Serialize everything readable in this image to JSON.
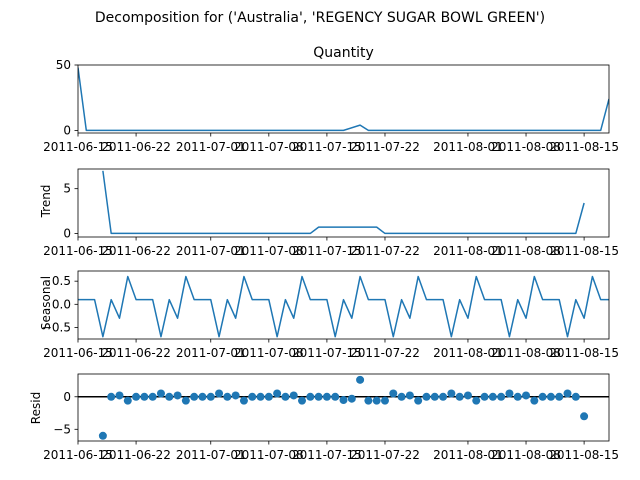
{
  "figure": {
    "suptitle": "Decomposition for ('Australia', 'REGENCY SUGAR BOWL GREEN')"
  },
  "chart_data": [
    {
      "type": "line",
      "title": "Quantity",
      "ylabel": "",
      "x_start": "2011-06-15",
      "x_end": "2011-08-18",
      "x_ticks": [
        "2011-06-15",
        "2011-06-22",
        "2011-07-01",
        "2011-07-08",
        "2011-07-15",
        "2011-07-22",
        "2011-08-01",
        "2011-08-08",
        "2011-08-15"
      ],
      "ylim": [
        -2,
        50
      ],
      "y_ticks": [
        "0",
        "50"
      ],
      "color": "#1f77b4",
      "grid": false,
      "points": [
        {
          "x": "2011-06-15",
          "y": 48
        },
        {
          "x": "2011-06-16",
          "y": 0
        },
        {
          "x": "2011-07-17",
          "y": 0
        },
        {
          "x": "2011-07-19",
          "y": 4
        },
        {
          "x": "2011-07-20",
          "y": 0
        },
        {
          "x": "2011-08-17",
          "y": 0
        },
        {
          "x": "2011-08-18",
          "y": 24
        }
      ]
    },
    {
      "type": "line",
      "title": "",
      "ylabel": "Trend",
      "x_start": "2011-06-15",
      "x_end": "2011-08-18",
      "x_ticks": [
        "2011-06-15",
        "2011-06-22",
        "2011-07-01",
        "2011-07-08",
        "2011-07-15",
        "2011-07-22",
        "2011-08-01",
        "2011-08-08",
        "2011-08-15"
      ],
      "ylim": [
        -0.4,
        7.2
      ],
      "y_ticks": [
        "0",
        "5"
      ],
      "color": "#1f77b4",
      "grid": false,
      "points": [
        {
          "x": "2011-06-18",
          "y": 7
        },
        {
          "x": "2011-06-19",
          "y": 0
        },
        {
          "x": "2011-07-13",
          "y": 0
        },
        {
          "x": "2011-07-14",
          "y": 0.7
        },
        {
          "x": "2011-07-21",
          "y": 0.7
        },
        {
          "x": "2011-07-22",
          "y": 0
        },
        {
          "x": "2011-08-14",
          "y": 0
        },
        {
          "x": "2011-08-15",
          "y": 3.4
        }
      ]
    },
    {
      "type": "line",
      "title": "",
      "ylabel": "Seasonal",
      "x_start": "2011-06-15",
      "x_end": "2011-08-18",
      "x_ticks": [
        "2011-06-15",
        "2011-06-22",
        "2011-07-01",
        "2011-07-08",
        "2011-07-15",
        "2011-07-22",
        "2011-08-01",
        "2011-08-08",
        "2011-08-15"
      ],
      "ylim": [
        -0.75,
        0.72
      ],
      "y_ticks": [
        "0.5",
        "0.0",
        "-0.5"
      ],
      "y_tick_values": [
        0.5,
        0,
        -0.5
      ],
      "color": "#1f77b4",
      "grid": false,
      "period": 7,
      "pattern": [
        0.1,
        0.1,
        0.1,
        -0.7,
        0.1,
        -0.3,
        0.6
      ],
      "start_x": "2011-06-15",
      "end_x": "2011-08-18"
    },
    {
      "type": "scatter",
      "title": "",
      "ylabel": "Resid",
      "x_start": "2011-06-15",
      "x_end": "2011-08-18",
      "x_ticks": [
        "2011-06-15",
        "2011-06-22",
        "2011-07-01",
        "2011-07-08",
        "2011-07-15",
        "2011-07-22",
        "2011-08-01",
        "2011-08-08",
        "2011-08-15"
      ],
      "ylim": [
        -6.8,
        3.5
      ],
      "y_ticks": [
        "0",
        "-5"
      ],
      "y_tick_values": [
        0,
        -5
      ],
      "color": "#1f77b4",
      "baseline": 0,
      "grid": false,
      "points": [
        {
          "x": "2011-06-18",
          "y": -6.0
        },
        {
          "x": "2011-06-19",
          "y": 0.0
        },
        {
          "x": "2011-06-20",
          "y": 0.2
        },
        {
          "x": "2011-06-21",
          "y": -0.6
        },
        {
          "x": "2011-06-22",
          "y": 0.0
        },
        {
          "x": "2011-06-23",
          "y": 0.0
        },
        {
          "x": "2011-06-24",
          "y": 0.0
        },
        {
          "x": "2011-06-25",
          "y": 0.5
        },
        {
          "x": "2011-06-26",
          "y": 0.0
        },
        {
          "x": "2011-06-27",
          "y": 0.2
        },
        {
          "x": "2011-06-28",
          "y": -0.6
        },
        {
          "x": "2011-06-29",
          "y": 0.0
        },
        {
          "x": "2011-06-30",
          "y": 0.0
        },
        {
          "x": "2011-07-01",
          "y": 0.0
        },
        {
          "x": "2011-07-02",
          "y": 0.5
        },
        {
          "x": "2011-07-03",
          "y": 0.0
        },
        {
          "x": "2011-07-04",
          "y": 0.2
        },
        {
          "x": "2011-07-05",
          "y": -0.6
        },
        {
          "x": "2011-07-06",
          "y": 0.0
        },
        {
          "x": "2011-07-07",
          "y": 0.0
        },
        {
          "x": "2011-07-08",
          "y": 0.0
        },
        {
          "x": "2011-07-09",
          "y": 0.5
        },
        {
          "x": "2011-07-10",
          "y": 0.0
        },
        {
          "x": "2011-07-11",
          "y": 0.2
        },
        {
          "x": "2011-07-12",
          "y": -0.6
        },
        {
          "x": "2011-07-13",
          "y": 0.0
        },
        {
          "x": "2011-07-14",
          "y": 0.0
        },
        {
          "x": "2011-07-15",
          "y": 0.0
        },
        {
          "x": "2011-07-16",
          "y": 0.0
        },
        {
          "x": "2011-07-17",
          "y": -0.5
        },
        {
          "x": "2011-07-18",
          "y": -0.3
        },
        {
          "x": "2011-07-19",
          "y": 2.6
        },
        {
          "x": "2011-07-20",
          "y": -0.6
        },
        {
          "x": "2011-07-21",
          "y": -0.6
        },
        {
          "x": "2011-07-22",
          "y": -0.6
        },
        {
          "x": "2011-07-23",
          "y": 0.5
        },
        {
          "x": "2011-07-24",
          "y": 0.0
        },
        {
          "x": "2011-07-25",
          "y": 0.2
        },
        {
          "x": "2011-07-26",
          "y": -0.6
        },
        {
          "x": "2011-07-27",
          "y": 0.0
        },
        {
          "x": "2011-07-28",
          "y": 0.0
        },
        {
          "x": "2011-07-29",
          "y": 0.0
        },
        {
          "x": "2011-07-30",
          "y": 0.5
        },
        {
          "x": "2011-07-31",
          "y": 0.0
        },
        {
          "x": "2011-08-01",
          "y": 0.2
        },
        {
          "x": "2011-08-02",
          "y": -0.6
        },
        {
          "x": "2011-08-03",
          "y": 0.0
        },
        {
          "x": "2011-08-04",
          "y": 0.0
        },
        {
          "x": "2011-08-05",
          "y": 0.0
        },
        {
          "x": "2011-08-06",
          "y": 0.5
        },
        {
          "x": "2011-08-07",
          "y": 0.0
        },
        {
          "x": "2011-08-08",
          "y": 0.2
        },
        {
          "x": "2011-08-09",
          "y": -0.6
        },
        {
          "x": "2011-08-10",
          "y": 0.0
        },
        {
          "x": "2011-08-11",
          "y": 0.0
        },
        {
          "x": "2011-08-12",
          "y": 0.0
        },
        {
          "x": "2011-08-13",
          "y": 0.5
        },
        {
          "x": "2011-08-14",
          "y": 0.0
        },
        {
          "x": "2011-08-15",
          "y": -3.0
        }
      ]
    }
  ]
}
